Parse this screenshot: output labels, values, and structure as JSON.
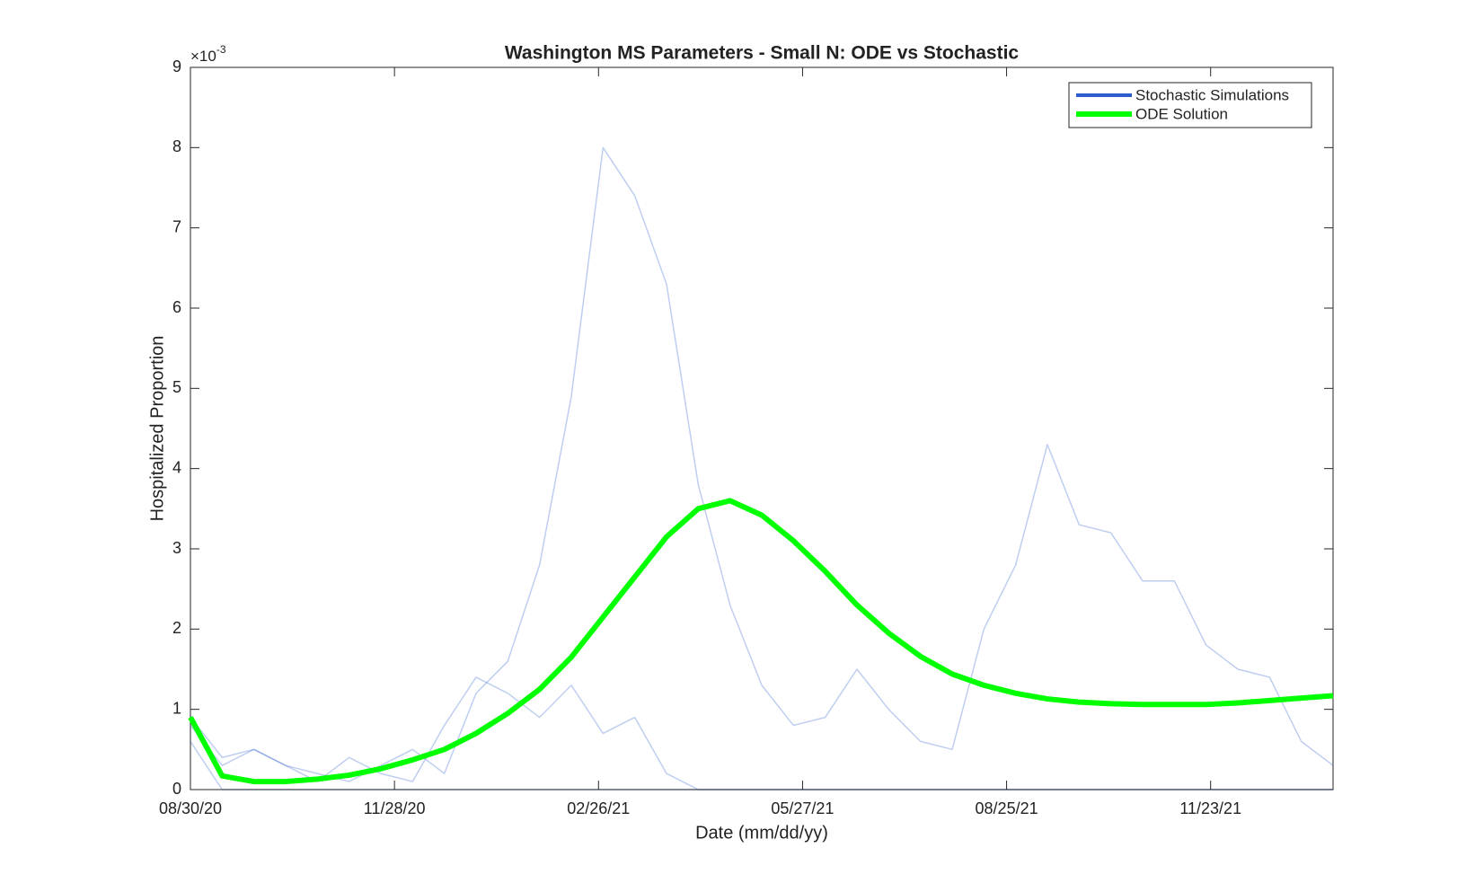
{
  "chart_data": {
    "type": "line",
    "title": "Washington MS Parameters - Small N: ODE vs Stochastic",
    "x_label": "Date (mm/dd/yy)",
    "y_label": "Hospitalized Proportion",
    "y_multiplier": {
      "base": "×10",
      "exponent": "-3"
    },
    "x": [
      "2020-08-30",
      "2020-09-13",
      "2020-09-27",
      "2020-10-11",
      "2020-10-25",
      "2020-11-08",
      "2020-11-22",
      "2020-12-06",
      "2020-12-20",
      "2021-01-03",
      "2021-01-17",
      "2021-01-31",
      "2021-02-14",
      "2021-02-28",
      "2021-03-14",
      "2021-03-28",
      "2021-04-11",
      "2021-04-25",
      "2021-05-09",
      "2021-05-23",
      "2021-06-06",
      "2021-06-20",
      "2021-07-04",
      "2021-07-18",
      "2021-08-01",
      "2021-08-15",
      "2021-08-29",
      "2021-09-12",
      "2021-09-26",
      "2021-10-10",
      "2021-10-24",
      "2021-11-07",
      "2021-11-21",
      "2021-12-05",
      "2021-12-19",
      "2022-01-02",
      "2022-01-16"
    ],
    "series": [
      {
        "name": "Stochastic Simulations",
        "color": "#2a5ccd",
        "opacity": 0.3,
        "values": [
          0.9,
          0.4,
          0.5,
          0.3,
          0.2,
          0.1,
          0.3,
          0.5,
          0.2,
          1.2,
          1.6,
          2.8,
          4.9,
          8.0,
          7.4,
          6.3,
          3.8,
          2.3,
          1.3,
          0.8,
          0.9,
          1.5,
          1.0,
          0.6,
          0.5,
          2.0,
          2.8,
          4.3,
          3.3,
          3.2,
          2.6,
          2.6,
          1.8,
          1.5,
          1.4,
          0.6,
          0.3
        ]
      },
      {
        "color": "#2a5ccd",
        "opacity": 0.3,
        "values": [
          0.8,
          0.3,
          0.5,
          0.3,
          0.1,
          0.4,
          0.2,
          0.1,
          0.8,
          1.4,
          1.2,
          0.9,
          1.3,
          0.7,
          0.9,
          0.2,
          0,
          0,
          0,
          0,
          0,
          0,
          0,
          0,
          0,
          0,
          0,
          0,
          0,
          0,
          0,
          0,
          0,
          0,
          0,
          0,
          0
        ]
      },
      {
        "color": "#2a5ccd",
        "opacity": 0.3,
        "values": [
          0.6,
          0,
          0,
          0,
          0,
          0,
          0,
          0,
          0,
          0,
          0,
          0,
          0,
          0,
          0,
          0,
          0,
          0,
          0,
          0,
          0,
          0,
          0,
          0,
          0,
          0,
          0,
          0,
          0,
          0,
          0,
          0,
          0,
          0,
          0,
          0,
          0
        ]
      },
      {
        "name": "ODE Solution",
        "color": "#00ff00",
        "opacity": 1,
        "values": [
          0.9,
          0.17,
          0.1,
          0.1,
          0.13,
          0.18,
          0.26,
          0.37,
          0.5,
          0.7,
          0.95,
          1.25,
          1.65,
          2.15,
          2.65,
          3.15,
          3.5,
          3.6,
          3.42,
          3.1,
          2.72,
          2.3,
          1.95,
          1.66,
          1.44,
          1.3,
          1.2,
          1.13,
          1.09,
          1.07,
          1.06,
          1.06,
          1.06,
          1.08,
          1.11,
          1.14,
          1.17
        ]
      }
    ],
    "xlim": [
      "2020-08-30",
      "2022-01-16"
    ],
    "xticks": [
      {
        "value": "2020-08-30",
        "label": "08/30/20"
      },
      {
        "value": "2020-11-28",
        "label": "11/28/20"
      },
      {
        "value": "2021-02-26",
        "label": "02/26/21"
      },
      {
        "value": "2021-05-27",
        "label": "05/27/21"
      },
      {
        "value": "2021-08-25",
        "label": "08/25/21"
      },
      {
        "value": "2021-11-23",
        "label": "11/23/21"
      }
    ],
    "ylim": [
      0,
      9
    ],
    "yticks": [
      0,
      1,
      2,
      3,
      4,
      5,
      6,
      7,
      8,
      9
    ],
    "grid": false,
    "legend_position": "top-right"
  }
}
